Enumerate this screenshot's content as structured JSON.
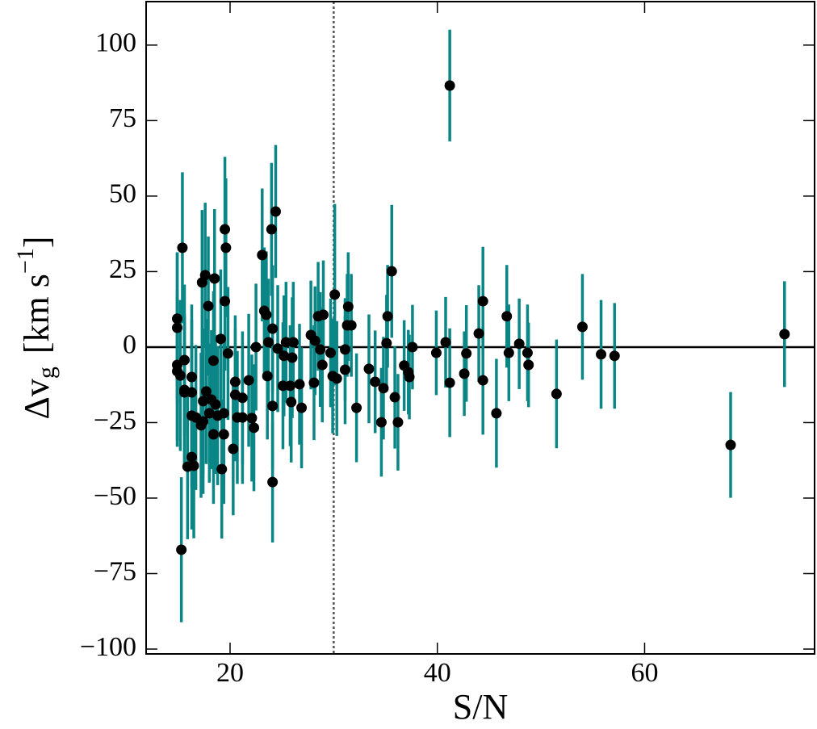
{
  "chart_data": {
    "type": "scatter",
    "x_label": "S/N",
    "y_label": {
      "main": "Δv",
      "sub": "g",
      "unit": "[km s",
      "sup": "−1",
      "close": "]"
    },
    "xlim": [
      11.9,
      76.4
    ],
    "ylim": [
      -101.6,
      114.4
    ],
    "xticks": [
      20,
      40,
      60
    ],
    "yticks": [
      {
        "value": -100,
        "label": "−100"
      },
      {
        "value": -75,
        "label": "−75"
      },
      {
        "value": -50,
        "label": "−50"
      },
      {
        "value": -25,
        "label": "−25"
      },
      0,
      25,
      50,
      75,
      100
    ],
    "vline": 30,
    "hline": 0,
    "series": [
      {
        "color": "#000000",
        "error_color": "#0b8686",
        "x": [
          41.2,
          73.5,
          68.3,
          57.1,
          55.8,
          54.0,
          51.5,
          48.7,
          48.8,
          47.9,
          46.9,
          46.7,
          45.7,
          44.4,
          44.4,
          44.0,
          42.8,
          42.6,
          41.2,
          40.8,
          39.9,
          37.6,
          37.3,
          37.2,
          36.8,
          36.2,
          35.9,
          35.6,
          35.2,
          35.1,
          34.8,
          34.6,
          34.0,
          33.4,
          32.2,
          31.7,
          31.4,
          31.3,
          31.1,
          31.1,
          30.1,
          30.3,
          29.9,
          29.7,
          29.0,
          28.9,
          28.7,
          28.5,
          28.2,
          28.1,
          27.8,
          26.9,
          26.7,
          26.1,
          26.0,
          25.9,
          25.8,
          25.4,
          25.2,
          25.1,
          24.6,
          24.4,
          24.1,
          24.1,
          24.1,
          24.0,
          23.7,
          23.6,
          23.5,
          23.3,
          23.1,
          22.5,
          22.3,
          22.1,
          21.8,
          21.2,
          21.2,
          20.7,
          20.5,
          20.5,
          20.3,
          19.8,
          19.6,
          19.5,
          19.5,
          19.4,
          19.4,
          19.2,
          19.1,
          18.8,
          18.6,
          18.5,
          18.4,
          18.4,
          18.2,
          18.0,
          17.9,
          17.7,
          17.6,
          17.4,
          17.4,
          17.3,
          17.2,
          16.7,
          16.5,
          16.3,
          16.3,
          16.3,
          16.3,
          15.9,
          15.6,
          15.6,
          15.6,
          15.4,
          15.3,
          15.2,
          14.9,
          14.9,
          14.9,
          14.9
        ],
        "values": [
          86.6,
          4.3,
          -32.4,
          -2.9,
          -2.4,
          6.7,
          -15.5,
          -1.9,
          -5.9,
          1.1,
          -1.9,
          10.2,
          -21.9,
          15.2,
          -11.0,
          4.5,
          -2.1,
          -8.8,
          -11.8,
          1.6,
          -1.9,
          0,
          -9.9,
          -8.3,
          -6.1,
          -24.9,
          -16.6,
          25.1,
          10.2,
          1.3,
          -13.6,
          -24.9,
          -11.5,
          -7.2,
          -20.1,
          7.2,
          13.4,
          7.2,
          -7.5,
          -0.8,
          17.4,
          -10.4,
          -9.6,
          -1.9,
          10.7,
          -5.9,
          -0.8,
          10.2,
          2.1,
          -11.8,
          4.0,
          -20.1,
          -12.3,
          1.6,
          -3.5,
          -18.2,
          -12.8,
          1.6,
          -2.9,
          -12.8,
          -0.5,
          44.9,
          6.1,
          -19.5,
          -44.7,
          39.0,
          1.6,
          -9.6,
          10.7,
          12.0,
          30.5,
          0,
          -26.7,
          -23.5,
          -11.0,
          -23.3,
          -16.8,
          -23.3,
          -11.5,
          -15.8,
          -33.7,
          -2.1,
          32.9,
          39.0,
          15.2,
          -21.9,
          -28.9,
          -40.4,
          2.7,
          -22.7,
          -19.0,
          22.7,
          -4.5,
          -28.9,
          -17.4,
          -21.9,
          13.6,
          -14.7,
          23.8,
          -24.6,
          -17.9,
          21.4,
          -25.9,
          -23.3,
          -39.3,
          -36.4,
          -9.9,
          -15.0,
          -22.7,
          -39.6,
          -4.3,
          -15.0,
          -14.2,
          32.9,
          -67.1,
          -9.4,
          9.4,
          6.4,
          -5.9,
          -8.0
        ],
        "errors": [
          18.5,
          17.5,
          17.5,
          17.5,
          18,
          17.5,
          18,
          16,
          14,
          15,
          16,
          17,
          18,
          18,
          18,
          16,
          16,
          14,
          18,
          15,
          14,
          14,
          14,
          14,
          15,
          16,
          17,
          22,
          17,
          16,
          17,
          18,
          17,
          18,
          18,
          17,
          18,
          17,
          18,
          17,
          30,
          19,
          19,
          18,
          18,
          19,
          19,
          18,
          18,
          19,
          18,
          20,
          20,
          20,
          20,
          20,
          20,
          20,
          20,
          21,
          21,
          22,
          21,
          21,
          20,
          22,
          21,
          21,
          21,
          21,
          22,
          21,
          21,
          21,
          22,
          22,
          22,
          22,
          22,
          22,
          22,
          22,
          23,
          24,
          23,
          23,
          23,
          23,
          23,
          23,
          23,
          23,
          23,
          23,
          23,
          23,
          23,
          24,
          24,
          24,
          24,
          24,
          24,
          24,
          24,
          24,
          24,
          24,
          24,
          24,
          25,
          25,
          25,
          25,
          24,
          25,
          22,
          25,
          25,
          25
        ]
      }
    ]
  }
}
